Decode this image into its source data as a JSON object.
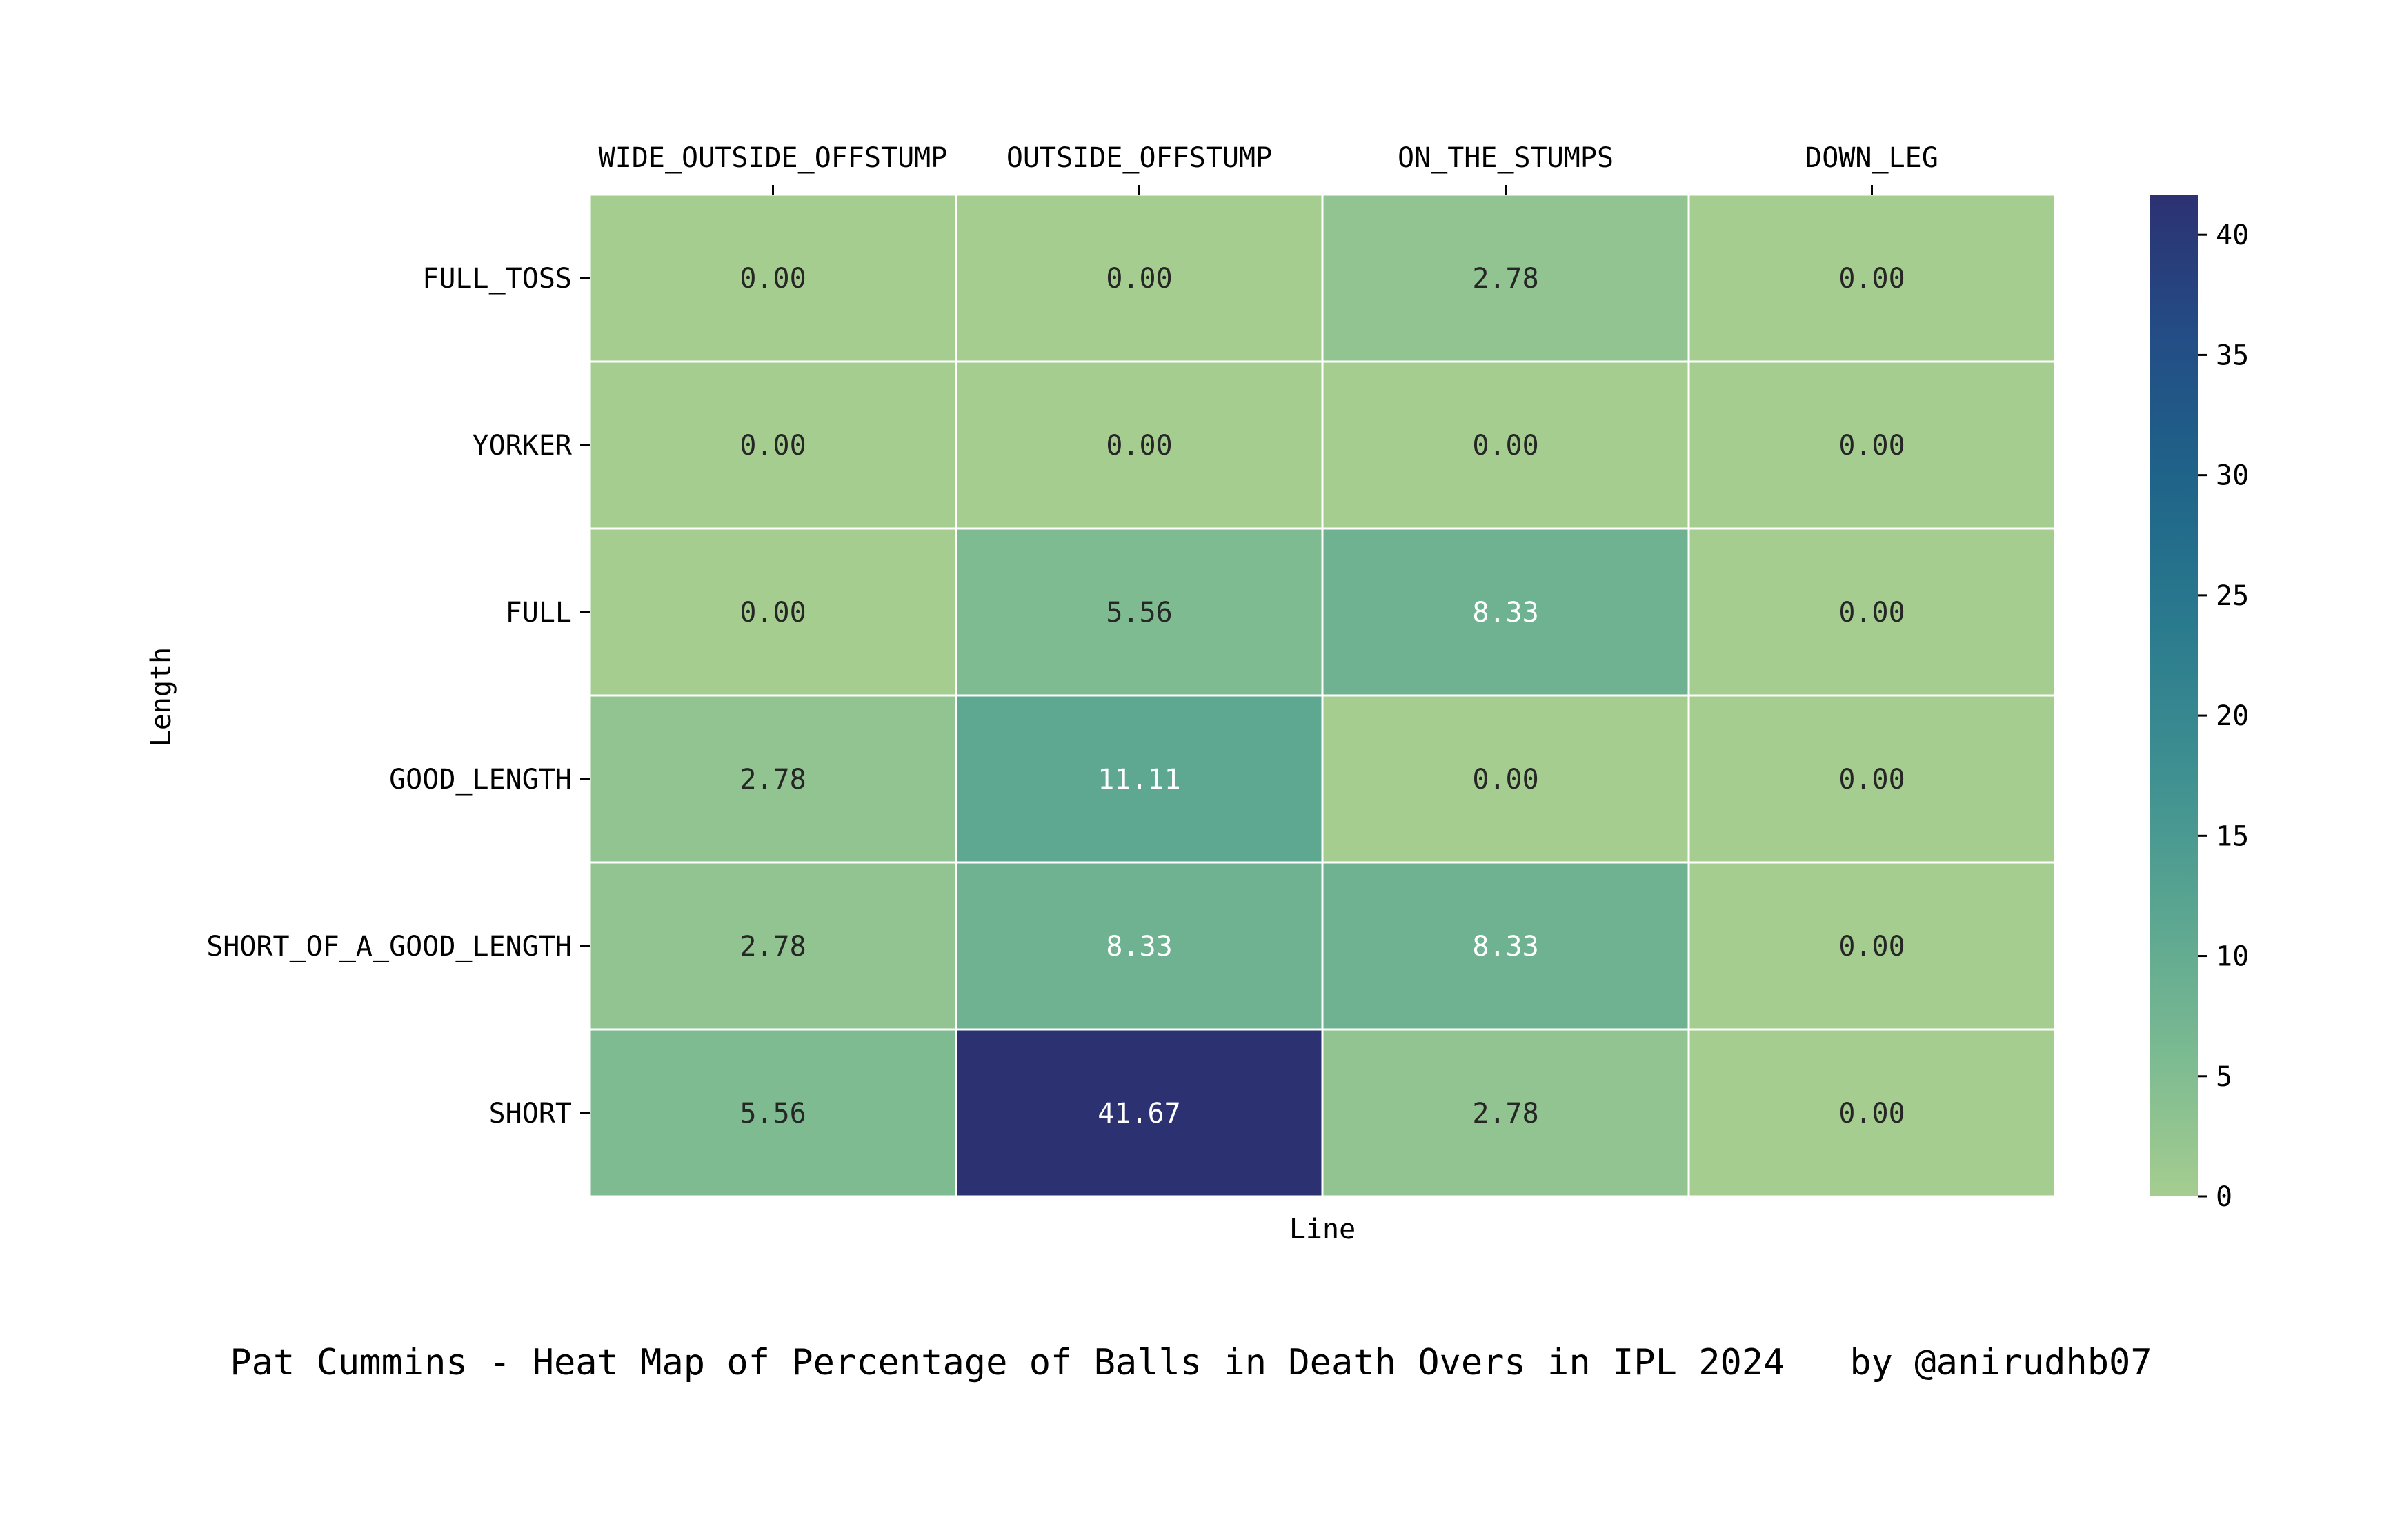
{
  "caption": "Pat Cummins - Heat Map of Percentage of Balls in Death Overs in IPL 2024   by @anirudhb07",
  "chart_data": {
    "type": "heatmap",
    "xlabel": "Line",
    "ylabel": "Length",
    "x_categories": [
      "WIDE_OUTSIDE_OFFSTUMP",
      "OUTSIDE_OFFSTUMP",
      "ON_THE_STUMPS",
      "DOWN_LEG"
    ],
    "y_categories": [
      "FULL_TOSS",
      "YORKER",
      "FULL",
      "GOOD_LENGTH",
      "SHORT_OF_A_GOOD_LENGTH",
      "SHORT"
    ],
    "values": [
      [
        0.0,
        0.0,
        2.78,
        0.0
      ],
      [
        0.0,
        0.0,
        0.0,
        0.0
      ],
      [
        0.0,
        5.56,
        8.33,
        0.0
      ],
      [
        2.78,
        11.11,
        0.0,
        0.0
      ],
      [
        2.78,
        8.33,
        8.33,
        0.0
      ],
      [
        5.56,
        41.67,
        2.78,
        0.0
      ]
    ],
    "value_format": "2 decimals",
    "x_axis_position": "top",
    "colormap": "crest",
    "colorbar": {
      "range": [
        0,
        41.67
      ],
      "ticks": [
        0,
        5,
        10,
        15,
        20,
        25,
        30,
        35,
        40
      ],
      "colors": [
        "#a5cd90",
        "#7bba91",
        "#5aa591",
        "#3d8f91",
        "#2a7a8e",
        "#1f6489",
        "#234d86",
        "#2c3172"
      ]
    },
    "grid_line_color": "#ffffff"
  }
}
